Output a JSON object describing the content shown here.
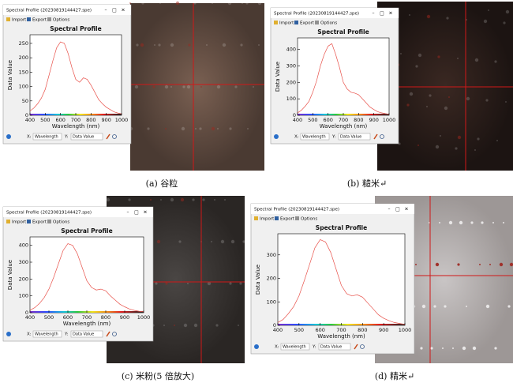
{
  "panels": [
    {
      "window_title": "Spectral Profile (20230819144427.spe)",
      "toolbar": [
        "Import",
        "Export",
        "Options"
      ],
      "chart": {
        "type": "line",
        "title": "Spectral Profile",
        "x_label": "Wavelength (nm)",
        "y_label": "Data Value",
        "x": [
          400,
          425,
          450,
          475,
          500,
          525,
          550,
          575,
          600,
          625,
          650,
          675,
          700,
          725,
          750,
          775,
          800,
          825,
          850,
          875,
          900,
          925,
          950,
          975,
          1000
        ],
        "values": [
          15,
          25,
          40,
          60,
          90,
          140,
          190,
          235,
          255,
          250,
          215,
          165,
          125,
          115,
          130,
          125,
          105,
          80,
          55,
          40,
          28,
          20,
          12,
          8,
          5
        ],
        "color": "#e8514a",
        "xlim": [
          400,
          1000
        ],
        "xticks": [
          400,
          500,
          600,
          700,
          800,
          900,
          1000
        ],
        "ylim": [
          0,
          280
        ],
        "yticks": [
          0,
          50,
          100,
          150,
          200,
          250
        ]
      },
      "x_selector_label": "X:",
      "x_selector": "Wavelength",
      "y_selector_label": "Y:",
      "y_selector": "Data Value",
      "caption": "(a)  谷粒"
    },
    {
      "window_title": "Spectral Profile (20230819144427.spe)",
      "toolbar": [
        "Import",
        "Export",
        "Options"
      ],
      "chart": {
        "type": "line",
        "title": "Spectral Profile",
        "x_label": "Wavelength (nm)",
        "y_label": "Data Value",
        "x": [
          400,
          425,
          450,
          475,
          500,
          525,
          550,
          575,
          600,
          625,
          650,
          675,
          700,
          725,
          750,
          775,
          800,
          825,
          850,
          875,
          900,
          925,
          950,
          975,
          1000
        ],
        "values": [
          15,
          30,
          55,
          85,
          140,
          210,
          300,
          370,
          420,
          435,
          370,
          290,
          200,
          160,
          140,
          135,
          125,
          100,
          75,
          50,
          35,
          22,
          15,
          10,
          6
        ],
        "color": "#e8514a",
        "xlim": [
          400,
          1000
        ],
        "xticks": [
          400,
          500,
          600,
          700,
          800,
          900,
          1000
        ],
        "ylim": [
          0,
          470
        ],
        "yticks": [
          0,
          100,
          200,
          300,
          400
        ]
      },
      "x_selector_label": "X:",
      "x_selector": "Wavelength",
      "y_selector_label": "Y:",
      "y_selector": "Data Value",
      "caption": "(b)  糙米↵"
    },
    {
      "window_title": "Spectral Profile (20230819144427.spe)",
      "toolbar": [
        "Import",
        "Export",
        "Options"
      ],
      "chart": {
        "type": "line",
        "title": "Spectral Profile",
        "x_label": "Wavelength (nm)",
        "y_label": "Data Value",
        "x": [
          400,
          425,
          450,
          475,
          500,
          525,
          550,
          575,
          600,
          625,
          650,
          675,
          700,
          725,
          750,
          775,
          800,
          825,
          850,
          875,
          900,
          925,
          950,
          975,
          1000
        ],
        "values": [
          15,
          30,
          55,
          90,
          140,
          210,
          290,
          370,
          410,
          400,
          350,
          270,
          190,
          150,
          135,
          140,
          130,
          100,
          75,
          50,
          35,
          22,
          14,
          9,
          5
        ],
        "color": "#e8514a",
        "xlim": [
          400,
          1000
        ],
        "xticks": [
          400,
          500,
          600,
          700,
          800,
          900,
          1000
        ],
        "ylim": [
          0,
          450
        ],
        "yticks": [
          0,
          100,
          200,
          300,
          400
        ]
      },
      "x_selector_label": "X:",
      "x_selector": "Wavelength",
      "y_selector_label": "Y:",
      "y_selector": "Data Value",
      "caption": "(c)  米粉(5 倍放大)"
    },
    {
      "window_title": "Spectral Profile (20230819144427.spe)",
      "toolbar": [
        "Import",
        "Export",
        "Options"
      ],
      "chart": {
        "type": "line",
        "title": "Spectral Profile",
        "x_label": "Wavelength (nm)",
        "y_label": "Data Value",
        "x": [
          400,
          425,
          450,
          475,
          500,
          525,
          550,
          575,
          600,
          625,
          650,
          675,
          700,
          725,
          750,
          775,
          800,
          825,
          850,
          875,
          900,
          925,
          950,
          975,
          1000
        ],
        "values": [
          12,
          25,
          50,
          80,
          125,
          190,
          260,
          330,
          365,
          355,
          310,
          240,
          170,
          135,
          125,
          130,
          120,
          95,
          70,
          45,
          30,
          20,
          12,
          8,
          4
        ],
        "color": "#e8514a",
        "xlim": [
          400,
          1000
        ],
        "xticks": [
          400,
          500,
          600,
          700,
          800,
          900,
          1000
        ],
        "ylim": [
          0,
          390
        ],
        "yticks": [
          0,
          100,
          200,
          300
        ]
      },
      "x_selector_label": "X:",
      "x_selector": "Wavelength",
      "y_selector_label": "Y:",
      "y_selector": "Data Value",
      "caption": "(d)  精米↵"
    }
  ]
}
